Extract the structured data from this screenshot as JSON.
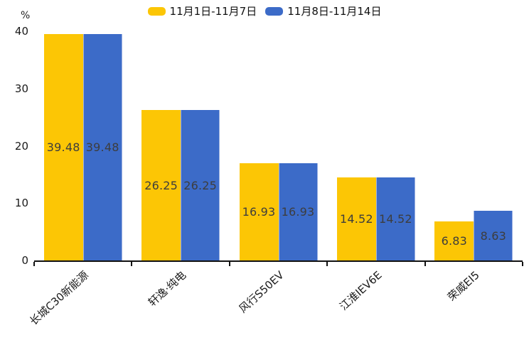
{
  "chart_data": {
    "type": "bar",
    "title": "",
    "unit_label": "%",
    "categories": [
      "长城C30新能源",
      "轩逸·纯电",
      "风行S50EV",
      "江淮IEV6E",
      "荣威EI5"
    ],
    "series": [
      {
        "name": "11月1日-11月7日",
        "color": "#FCC605",
        "values": [
          39.48,
          26.25,
          16.93,
          14.52,
          6.83
        ]
      },
      {
        "name": "11月8日-11月14日",
        "color": "#3C6BC8",
        "values": [
          39.48,
          26.25,
          16.93,
          14.52,
          8.63
        ]
      }
    ],
    "y_axis": {
      "ticks": [
        0,
        10,
        20,
        30,
        40
      ],
      "min": 0,
      "max": 40
    },
    "legend_position": "top-center",
    "grid": false,
    "value_labels": "inside-center",
    "value_label_color": "#3d3d3d",
    "axis_color": "#111111"
  }
}
